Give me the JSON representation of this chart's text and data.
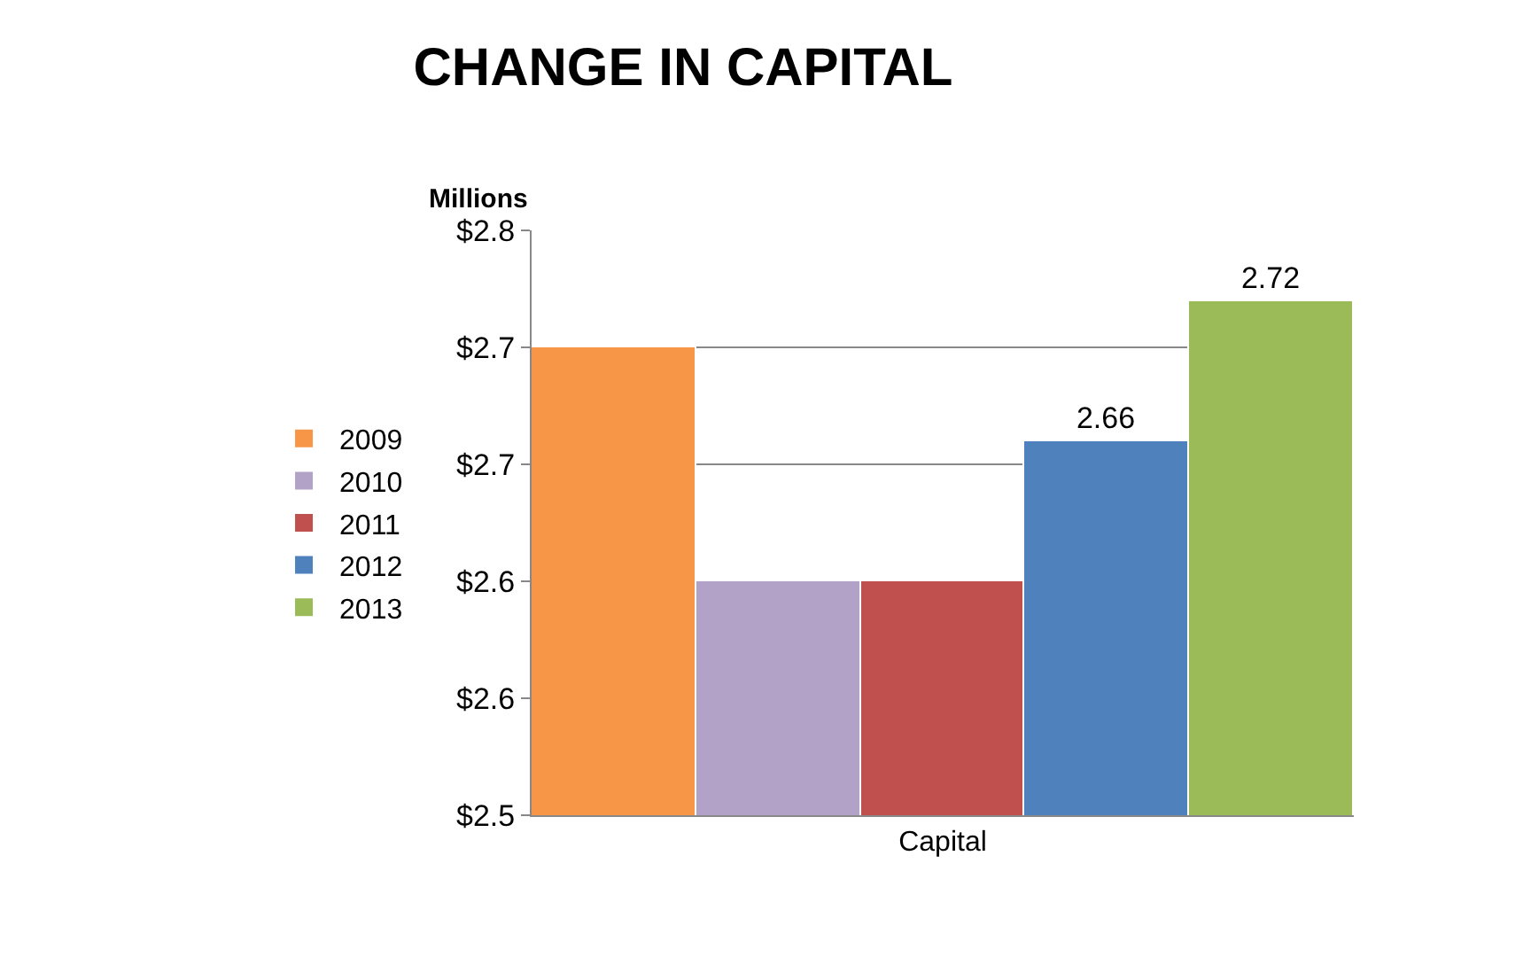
{
  "chart_data": {
    "type": "bar",
    "title": "CHANGE IN CAPITAL",
    "ylabel": "Millions",
    "categories": [
      "Capital"
    ],
    "series": [
      {
        "name": "2009",
        "color": "#f79646",
        "values": [
          2.7
        ]
      },
      {
        "name": "2010",
        "color": "#b3a2c7",
        "values": [
          2.6
        ]
      },
      {
        "name": "2011",
        "color": "#c0504d",
        "values": [
          2.6
        ]
      },
      {
        "name": "2012",
        "color": "#4f81bd",
        "values": [
          2.66
        ],
        "value_labels": [
          "2.66"
        ]
      },
      {
        "name": "2013",
        "color": "#9bbb59",
        "values": [
          2.72
        ],
        "value_labels": [
          "2.72"
        ]
      }
    ],
    "ylim": [
      2.5,
      2.75
    ],
    "yticks": [
      {
        "value": 2.5,
        "label": "$2.5"
      },
      {
        "value": 2.55,
        "label": "$2.6"
      },
      {
        "value": 2.6,
        "label": "$2.6"
      },
      {
        "value": 2.65,
        "label": "$2.7"
      },
      {
        "value": 2.7,
        "label": "$2.7"
      },
      {
        "value": 2.75,
        "label": "$2.8"
      }
    ],
    "grid": "y",
    "legend": "left"
  }
}
